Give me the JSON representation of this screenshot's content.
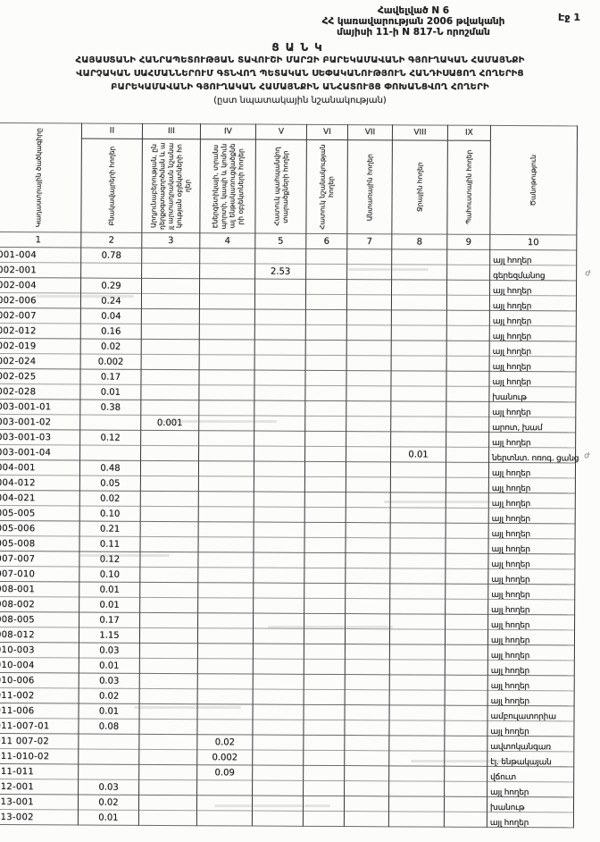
{
  "page": {
    "page_label": "Էջ 1"
  },
  "appendix": {
    "line1": "Հավելված N 6",
    "line2": "ՀՀ կառավարության 2006 թվականի",
    "line3": "մայիսի 11-ի N 817-Ն որոշման"
  },
  "title": {
    "caption": "ՑԱՆԿ",
    "line1": "ՀԱՅԱՍՏԱՆԻ ՀԱՆՐԱՊԵՏՈՒԹՅԱՆ ՏԱՎՈՒՇԻ ՄԱՐԶԻ ԲԱՐԵԿԱՄԱՎԱՆԻ ԳՅՈՒՂԱԿԱՆ ՀԱՄԱՅՆՔԻ",
    "line2": "ՎԱՐՉԱԿԱՆ ՍԱՀՄԱՆՆԵՐՈՒՄ ԳՏՆՎՈՂ ՊԵՏԱԿԱՆ ՍԵՓԱԿԱՆՈՒԹՅՈՒՆ ՀԱՆԴԻՍԱՑՈՂ ՀՈՂԵՐԻՑ",
    "line3": "ԲԱՐԵԿԱՄԱՎԱՆԻ ԳՅՈՒՂԱԿԱՆ ՀԱՄԱՅՆՔԻՆ ԱՆՀԱՏՈՒՅՑ ՓՈԽԱՆՑՎՈՂ ՀՈՂԵՐԻ",
    "line4": "(ըստ նպատակային նշանակության)"
  },
  "table": {
    "roman_numerals": [
      "II",
      "III",
      "IV",
      "V",
      "VI",
      "VII",
      "VIII",
      "IX"
    ],
    "column_headers": {
      "col1": "Կադաստրային ծածկագիրը",
      "col2": "Բնակավայրերի հողեր",
      "col3": "Արդյունաբերության, ընդերքօգտագործման և այլ արտադրական նշանակության օբյեկտների հողեր",
      "col4": "Էներգետիկայի, տրանսպորտի, կապի և կոմունալ ենթակառուցվածքների օբյեկտների հողեր",
      "col5": "Հատուկ պահպանվող տարածքների հողեր",
      "col6": "Հատուկ նշանակության հողեր",
      "col7": "Անտառային հողեր",
      "col8": "Ջրային հողեր",
      "col9": "Պահուստային հողեր",
      "col10": "Ծանոթություն"
    },
    "column_numbers": [
      "1",
      "2",
      "3",
      "4",
      "5",
      "6",
      "7",
      "8",
      "9",
      "10"
    ],
    "rows": [
      {
        "code": "001-004",
        "value_column": 2,
        "value": "0.78",
        "note": "այլ հողեր"
      },
      {
        "code": "002-001",
        "value_column": 5,
        "value": "2.53",
        "note": "գերեզմանոց",
        "margin_mark": "ժ"
      },
      {
        "code": "002-004",
        "value_column": 2,
        "value": "0.29",
        "note": "այլ հողեր"
      },
      {
        "code": "002-006",
        "value_column": 2,
        "value": "0.24",
        "note": "այլ հողեր"
      },
      {
        "code": "002-007",
        "value_column": 2,
        "value": "0.04",
        "note": "այլ հողեր"
      },
      {
        "code": "002-012",
        "value_column": 2,
        "value": "0.16",
        "note": "այլ հողեր"
      },
      {
        "code": "002-019",
        "value_column": 2,
        "value": "0.02",
        "note": "այլ հողեր"
      },
      {
        "code": "002-024",
        "value_column": 2,
        "value": "0.002",
        "note": "այլ հողեր"
      },
      {
        "code": "002-025",
        "value_column": 2,
        "value": "0.17",
        "note": "այլ հողեր"
      },
      {
        "code": "002-028",
        "value_column": 2,
        "value": "0.01",
        "note": "խանութ"
      },
      {
        "code": "003-001-01",
        "value_column": 2,
        "value": "0.38",
        "note": "այլ հողեր"
      },
      {
        "code": "003-001-02",
        "value_column": 3,
        "value": "0.001",
        "note": "արոտ, խամ"
      },
      {
        "code": "003-001-03",
        "value_column": 2,
        "value": "0.12",
        "note": "այլ հողեր"
      },
      {
        "code": "003-001-04",
        "value_column": 8,
        "value": "0.01",
        "note": "ներտնտ. ոռոգ. ցանց",
        "margin_mark": "ժ"
      },
      {
        "code": "004-001",
        "value_column": 2,
        "value": "0.48",
        "note": "այլ հողեր"
      },
      {
        "code": "004-012",
        "value_column": 2,
        "value": "0.05",
        "note": "այլ հողեր"
      },
      {
        "code": "004-021",
        "value_column": 2,
        "value": "0.02",
        "note": "այլ հողեր"
      },
      {
        "code": "005-005",
        "value_column": 2,
        "value": "0.10",
        "note": "այլ հողեր"
      },
      {
        "code": "005-006",
        "value_column": 2,
        "value": "0.21",
        "note": "այլ հողեր"
      },
      {
        "code": "005-008",
        "value_column": 2,
        "value": "0.11",
        "note": "այլ հողեր"
      },
      {
        "code": "007-007",
        "value_column": 2,
        "value": "0.12",
        "note": "այլ հողեր"
      },
      {
        "code": "007-010",
        "value_column": 2,
        "value": "0.10",
        "note": "այլ հողեր"
      },
      {
        "code": "008-001",
        "value_column": 2,
        "value": "0.01",
        "note": "այլ հողեր"
      },
      {
        "code": "008-002",
        "value_column": 2,
        "value": "0.01",
        "note": "այլ հողեր"
      },
      {
        "code": "008-005",
        "value_column": 2,
        "value": "0.17",
        "note": "այլ հողեր"
      },
      {
        "code": "008-012",
        "value_column": 2,
        "value": "1.15",
        "note": "այլ հողեր"
      },
      {
        "code": "010-003",
        "value_column": 2,
        "value": "0.03",
        "note": "այլ հողեր"
      },
      {
        "code": "010-004",
        "value_column": 2,
        "value": "0.01",
        "note": "այլ հողեր"
      },
      {
        "code": "010-006",
        "value_column": 2,
        "value": "0.03",
        "note": "այլ հողեր"
      },
      {
        "code": "011-002",
        "value_column": 2,
        "value": "0.02",
        "note": "այլ հողեր"
      },
      {
        "code": "011-006",
        "value_column": 2,
        "value": "0.01",
        "note": "ամբուլատորիա"
      },
      {
        "code": "011-007-01",
        "value_column": 2,
        "value": "0.08",
        "note": "այլ հողեր"
      },
      {
        "code": "011 007-02",
        "value_column": 4,
        "value": "0.02",
        "note": "ավտոկանգառ"
      },
      {
        "code": "011-010-02",
        "value_column": 4,
        "value": "0.002",
        "note": "էլ. ենթակայան"
      },
      {
        "code": "011-011",
        "value_column": 4,
        "value": "0.09",
        "note": "վճուտ"
      },
      {
        "code": "012-001",
        "value_column": 2,
        "value": "0.03",
        "note": "այլ հողեր"
      },
      {
        "code": "013-001",
        "value_column": 2,
        "value": "0.02",
        "note": "խանութ"
      },
      {
        "code": "013-002",
        "value_column": 2,
        "value": "0.01",
        "note": "այլ հողեր"
      }
    ]
  }
}
